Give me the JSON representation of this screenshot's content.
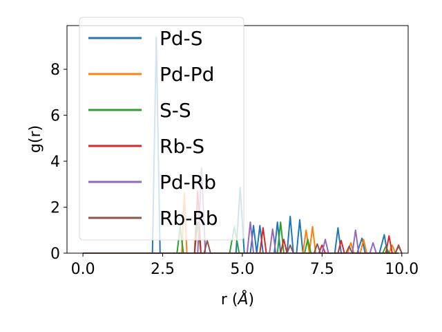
{
  "chart_data": {
    "type": "line",
    "xlabel_prefix": "r (",
    "xlabel_unit": "Å",
    "xlabel_suffix": ")",
    "ylabel": "g(r)",
    "xlim": [
      -0.5,
      10.2
    ],
    "ylim": [
      0,
      9.9
    ],
    "xticks": [
      0.0,
      2.5,
      5.0,
      7.5,
      10.0
    ],
    "xtick_labels": [
      "0.0",
      "2.5",
      "5.0",
      "7.5",
      "10.0"
    ],
    "yticks": [
      0,
      2,
      4,
      6,
      8
    ],
    "ytick_labels": [
      "0",
      "2",
      "4",
      "6",
      "8"
    ],
    "grid": false,
    "legend_position": "upper-left",
    "series": [
      {
        "name": "Pd-S",
        "color": "#1f77b4",
        "points": [
          [
            0,
            0
          ],
          [
            2.18,
            0
          ],
          [
            2.3,
            9.4
          ],
          [
            2.42,
            0
          ],
          [
            4.8,
            0
          ],
          [
            4.93,
            2.85
          ],
          [
            5.06,
            0
          ],
          [
            5.25,
            0
          ],
          [
            5.35,
            1.2
          ],
          [
            5.45,
            0
          ],
          [
            5.55,
            1.2
          ],
          [
            5.65,
            0
          ],
          [
            6.0,
            0
          ],
          [
            6.1,
            1.35
          ],
          [
            6.2,
            0
          ],
          [
            6.4,
            0
          ],
          [
            6.5,
            1.6
          ],
          [
            6.6,
            0
          ],
          [
            6.7,
            0
          ],
          [
            6.8,
            1.45
          ],
          [
            6.9,
            0
          ],
          [
            7.9,
            0
          ],
          [
            8.0,
            1.1
          ],
          [
            8.1,
            0
          ],
          [
            8.6,
            0
          ],
          [
            8.75,
            0.65
          ],
          [
            8.85,
            0
          ],
          [
            9.3,
            0
          ],
          [
            9.45,
            0.8
          ],
          [
            9.55,
            0
          ],
          [
            9.9,
            0
          ]
        ]
      },
      {
        "name": "Pd-Pd",
        "color": "#ff7f0e",
        "points": [
          [
            0,
            0
          ],
          [
            3.1,
            0
          ],
          [
            3.18,
            2.6
          ],
          [
            3.26,
            0
          ],
          [
            6.9,
            0
          ],
          [
            7.0,
            1.0
          ],
          [
            7.1,
            0
          ],
          [
            7.2,
            1.15
          ],
          [
            7.3,
            0
          ],
          [
            8.3,
            0
          ],
          [
            8.4,
            0.45
          ],
          [
            8.5,
            0
          ],
          [
            8.7,
            0
          ],
          [
            8.8,
            0.6
          ],
          [
            8.9,
            0
          ],
          [
            9.6,
            0
          ],
          [
            9.7,
            0.35
          ],
          [
            9.8,
            0
          ]
        ]
      },
      {
        "name": "S-S",
        "color": "#2ca02c",
        "points": [
          [
            0,
            0
          ],
          [
            2.95,
            0
          ],
          [
            3.05,
            1.15
          ],
          [
            3.15,
            0
          ],
          [
            3.5,
            0
          ],
          [
            3.6,
            1.35
          ],
          [
            3.7,
            0
          ],
          [
            4.6,
            0
          ],
          [
            4.75,
            1.15
          ],
          [
            4.9,
            0
          ],
          [
            6.1,
            0
          ],
          [
            6.2,
            1.35
          ],
          [
            6.3,
            0
          ],
          [
            6.95,
            0
          ],
          [
            7.05,
            0.6
          ],
          [
            7.15,
            0
          ],
          [
            9.4,
            0
          ],
          [
            9.5,
            0.3
          ],
          [
            9.6,
            0
          ]
        ]
      },
      {
        "name": "Rb-S",
        "color": "#d62728",
        "points": [
          [
            0,
            0
          ],
          [
            3.5,
            0
          ],
          [
            3.6,
            2.7
          ],
          [
            3.7,
            0
          ],
          [
            5.55,
            0
          ],
          [
            5.65,
            1.1
          ],
          [
            5.75,
            0
          ],
          [
            6.2,
            0
          ],
          [
            6.3,
            0.6
          ],
          [
            6.4,
            0
          ],
          [
            7.4,
            0
          ],
          [
            7.5,
            0.35
          ],
          [
            7.6,
            0
          ],
          [
            8.0,
            0
          ],
          [
            8.1,
            0.55
          ],
          [
            8.2,
            0
          ],
          [
            9.5,
            0
          ],
          [
            9.6,
            0.75
          ],
          [
            9.7,
            0
          ],
          [
            9.8,
            0
          ],
          [
            9.9,
            0.35
          ],
          [
            10.0,
            0
          ]
        ]
      },
      {
        "name": "Pd-Rb",
        "color": "#9467bd",
        "points": [
          [
            0,
            0
          ],
          [
            3.6,
            0
          ],
          [
            3.72,
            3.7
          ],
          [
            3.84,
            0
          ],
          [
            5.15,
            0
          ],
          [
            5.25,
            1.35
          ],
          [
            5.35,
            0
          ],
          [
            5.85,
            0
          ],
          [
            5.95,
            1.05
          ],
          [
            6.05,
            0
          ],
          [
            7.5,
            0
          ],
          [
            7.6,
            0.6
          ],
          [
            7.7,
            0
          ],
          [
            8.45,
            0
          ],
          [
            8.55,
            1.0
          ],
          [
            8.65,
            0
          ],
          [
            9.0,
            0
          ],
          [
            9.1,
            0.45
          ],
          [
            9.2,
            0
          ]
        ]
      },
      {
        "name": "Rb-Rb",
        "color": "#8c564b",
        "points": [
          [
            0,
            0
          ],
          [
            3.8,
            0
          ],
          [
            3.9,
            0.55
          ],
          [
            4.0,
            0
          ],
          [
            6.4,
            0
          ],
          [
            6.5,
            0.35
          ],
          [
            6.6,
            0
          ],
          [
            7.25,
            0
          ],
          [
            7.35,
            0.4
          ],
          [
            7.45,
            0
          ],
          [
            8.25,
            0
          ],
          [
            8.35,
            0.3
          ],
          [
            8.45,
            0
          ],
          [
            9.8,
            0
          ],
          [
            9.9,
            0.3
          ],
          [
            10.0,
            0
          ]
        ]
      }
    ]
  }
}
